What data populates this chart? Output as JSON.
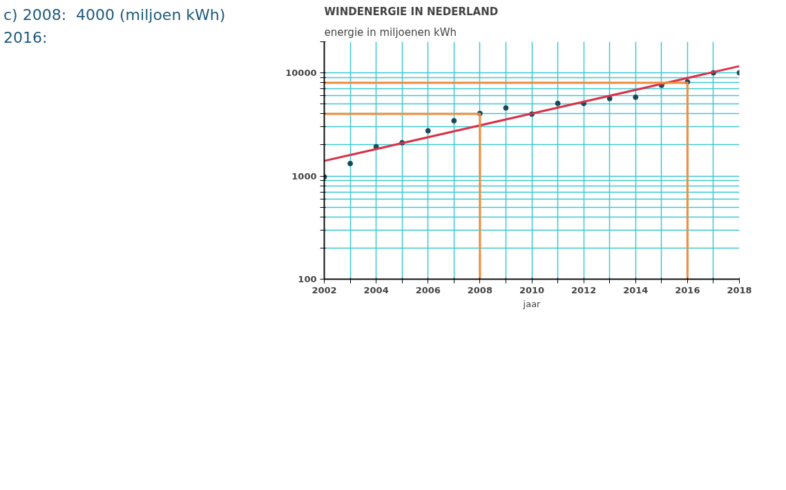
{
  "chart_data": {
    "type": "scatter",
    "title": "WINDENERGIE IN NEDERLAND",
    "ylabel": "energie in miljoenen kWh",
    "xlabel": "jaar",
    "annotations": [
      "c) 2008:  4000 (miljoen kWh)",
      "2016:"
    ],
    "log": "y",
    "grid": true,
    "xlim": [
      2002,
      2018
    ],
    "xticks": [
      2002,
      {
        "value": 2003,
        "label": null
      },
      2004,
      {
        "value": 2005,
        "label": null
      },
      2006,
      {
        "value": 2007,
        "label": null
      },
      2008,
      {
        "value": 2009,
        "label": null
      },
      2010,
      {
        "value": 2011,
        "label": null
      },
      2012,
      {
        "value": 2013,
        "label": null
      },
      2014,
      {
        "value": 2015,
        "label": null
      },
      2016,
      {
        "value": 2017,
        "label": null
      },
      2018
    ],
    "ylim": [
      100,
      20000
    ],
    "yticks": [
      100,
      {
        "value": 200,
        "label": null
      },
      {
        "value": 300,
        "label": null
      },
      {
        "value": 400,
        "label": null
      },
      {
        "value": 500,
        "label": null
      },
      {
        "value": 600,
        "label": null
      },
      {
        "value": 700,
        "label": null
      },
      {
        "value": 800,
        "label": null
      },
      {
        "value": 900,
        "label": null
      },
      1000,
      {
        "value": 2000,
        "label": null
      },
      {
        "value": 3000,
        "label": null
      },
      {
        "value": 4000,
        "label": null
      },
      {
        "value": 5000,
        "label": null
      },
      {
        "value": 6000,
        "label": null
      },
      {
        "value": 7000,
        "label": null
      },
      {
        "value": 8000,
        "label": null
      },
      {
        "value": 9000,
        "label": null
      },
      10000,
      {
        "value": 20000,
        "label": null
      }
    ],
    "x": [
      2002,
      2003,
      2004,
      2005,
      2006,
      2007,
      2008,
      2009,
      2010,
      2011,
      2012,
      2013,
      2014,
      2015,
      2016,
      2017,
      2018
    ],
    "series": [
      {
        "marker": "circle",
        "color": "#1a4a5a",
        "values": [
          980,
          1320,
          1920,
          2100,
          2740,
          3430,
          4040,
          4570,
          3980,
          5050,
          5050,
          5630,
          5800,
          7570,
          8170,
          10000,
          10000
        ]
      },
      {
        "type": "line",
        "marker": "none",
        "color": "#d8324a",
        "x": [
          2002,
          2018
        ],
        "values": [
          1400,
          11600
        ]
      },
      {
        "type": "line",
        "marker": "none",
        "color": "#f08c3c",
        "x": [
          2008,
          2008,
          2002
        ],
        "values": [
          100,
          4000,
          4000
        ]
      },
      {
        "type": "line",
        "marker": "none",
        "color": "#f08c3c",
        "x": [
          2016,
          2016,
          2002
        ],
        "values": [
          100,
          8000,
          8000
        ]
      }
    ]
  }
}
